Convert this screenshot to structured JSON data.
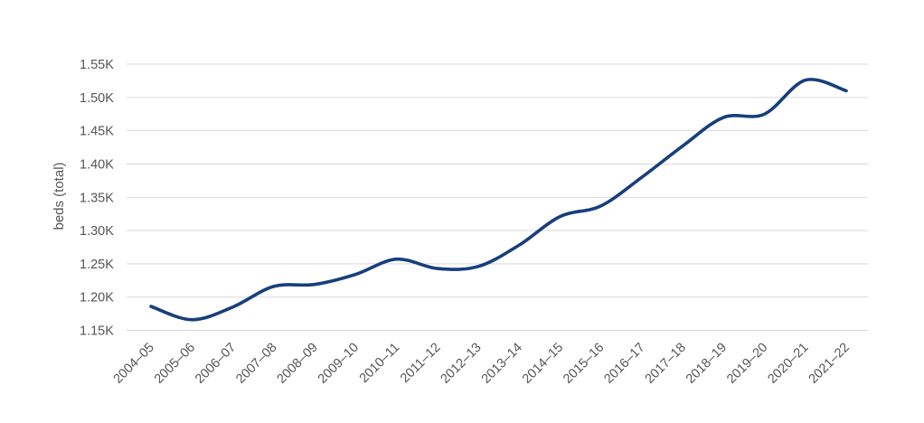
{
  "chart_data": {
    "type": "line",
    "title": "",
    "xlabel": "",
    "ylabel": "beds (total)",
    "ylim": [
      1140,
      1560
    ],
    "yticks": [
      1150,
      1200,
      1250,
      1300,
      1350,
      1400,
      1450,
      1500,
      1550
    ],
    "ytick_labels": [
      "1.15K",
      "1.20K",
      "1.25K",
      "1.30K",
      "1.35K",
      "1.40K",
      "1.45K",
      "1.50K",
      "1.55K"
    ],
    "categories": [
      "2004–05",
      "2005–06",
      "2006–07",
      "2007–08",
      "2008–09",
      "2009–10",
      "2010–11",
      "2011–12",
      "2012–13",
      "2013–14",
      "2014–15",
      "2015–16",
      "2016–17",
      "2017–18",
      "2018–19",
      "2019–20",
      "2020–21",
      "2021–22"
    ],
    "series": [
      {
        "name": "",
        "color": "#173f7c",
        "values": [
          1186,
          1166,
          1185,
          1216,
          1219,
          1234,
          1257,
          1243,
          1246,
          1278,
          1321,
          1337,
          1380,
          1427,
          1470,
          1475,
          1526,
          1510
        ]
      }
    ],
    "grid": true,
    "legend": "none"
  }
}
